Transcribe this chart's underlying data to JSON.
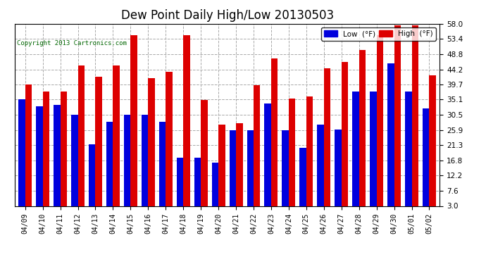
{
  "title": "Dew Point Daily High/Low 20130503",
  "copyright": "Copyright 2013 Cartronics.com",
  "background_color": "#ffffff",
  "plot_bg_color": "#ffffff",
  "grid_color": "#aaaaaa",
  "categories": [
    "04/09",
    "04/10",
    "04/11",
    "04/12",
    "04/13",
    "04/14",
    "04/15",
    "04/16",
    "04/17",
    "04/18",
    "04/19",
    "04/20",
    "04/21",
    "04/22",
    "04/23",
    "04/24",
    "04/25",
    "04/26",
    "04/27",
    "04/28",
    "04/29",
    "04/30",
    "05/01",
    "05/02"
  ],
  "low_values": [
    35.1,
    33.0,
    33.5,
    30.5,
    21.5,
    28.5,
    30.5,
    30.5,
    28.5,
    17.5,
    17.5,
    16.0,
    25.9,
    25.9,
    34.0,
    25.9,
    20.5,
    27.5,
    26.0,
    37.5,
    37.5,
    46.0,
    37.5,
    32.5
  ],
  "high_values": [
    39.7,
    37.5,
    37.5,
    45.5,
    42.0,
    45.5,
    54.5,
    41.5,
    43.5,
    54.5,
    35.0,
    27.5,
    28.0,
    39.5,
    47.5,
    35.5,
    36.0,
    44.5,
    46.5,
    50.0,
    54.5,
    57.5,
    57.5,
    42.5
  ],
  "ylim_min": 3.0,
  "ylim_max": 58.0,
  "yticks": [
    3.0,
    7.6,
    12.2,
    16.8,
    21.3,
    25.9,
    30.5,
    35.1,
    39.7,
    44.2,
    48.8,
    53.4,
    58.0
  ],
  "low_color": "#0000dd",
  "high_color": "#dd0000",
  "bar_width": 0.38,
  "legend_low": "Low  (°F)",
  "legend_high": "High  (°F)"
}
